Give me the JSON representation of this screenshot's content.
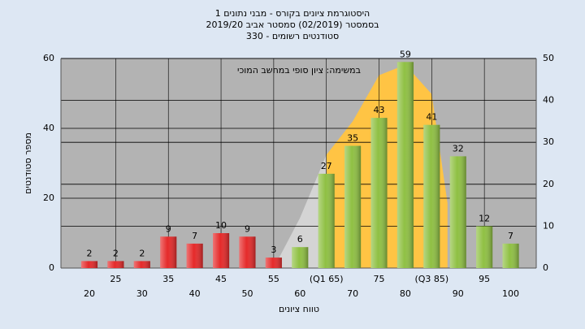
{
  "chart_data": {
    "type": "bar",
    "title": [
      "היסטוגרמת ציונים בקורס - מבני נתונים 1",
      "בסמסטר (02/2019) סמסטר אביב 2019/20",
      "סטודנטים רשומים - 330"
    ],
    "annotation": "במשימה: ציון סופי במחשב המוכי",
    "y_label": "מספר סטודנטים",
    "x_label": "טווח ציונים",
    "categories": [
      "20",
      "25",
      "30",
      "35",
      "40",
      "45",
      "50",
      "55",
      "60",
      "(Q1 65)",
      "70",
      "75",
      "80",
      "(Q3 85)",
      "90",
      "95",
      "100"
    ],
    "values": [
      2,
      2,
      2,
      9,
      7,
      10,
      9,
      3,
      6,
      27,
      35,
      43,
      59,
      41,
      32,
      12,
      7
    ],
    "colors": [
      "#e52a2a",
      "#e52a2a",
      "#e52a2a",
      "#e52a2a",
      "#e52a2a",
      "#e52a2a",
      "#e52a2a",
      "#e52a2a",
      "#8fc043",
      "#8fc043",
      "#8fc043",
      "#8fc043",
      "#8fc043",
      "#8fc043",
      "#8fc043",
      "#8fc043",
      "#8fc043"
    ],
    "areas": [
      {
        "color": "#d4d4d4",
        "x": [
          55,
          60,
          65,
          66
        ],
        "values": [
          0,
          12,
          27,
          27
        ]
      },
      {
        "color": "#ffc444",
        "x": [
          65,
          70,
          75,
          80,
          85,
          88
        ],
        "values": [
          27,
          35,
          46,
          48.5,
          41.5,
          15.5
        ]
      }
    ],
    "ylim": [
      0,
      60
    ],
    "yticks": [
      0,
      20,
      40,
      60
    ],
    "y2lim": [
      0,
      50
    ],
    "y2ticks": [
      0,
      10,
      20,
      30,
      40,
      50
    ],
    "grid": true
  }
}
